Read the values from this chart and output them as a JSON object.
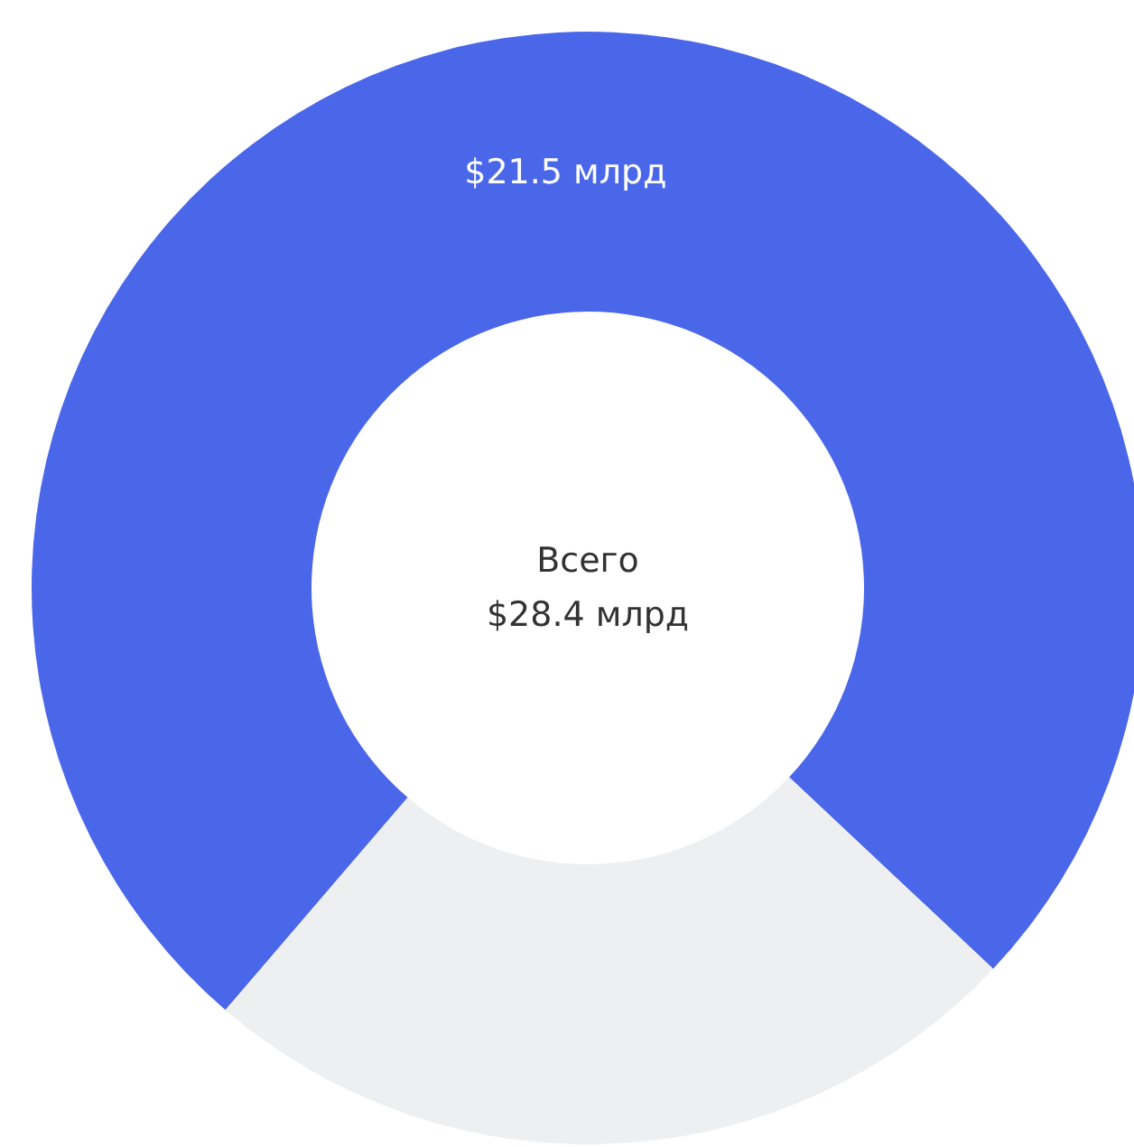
{
  "chart_data": {
    "type": "donut",
    "categories": [
      null,
      null
    ],
    "values": [
      21.5,
      6.9
    ],
    "colors": [
      "#4a67ea",
      "#eeeff1"
    ],
    "value_labels": [
      "$21.5 млрд",
      null
    ],
    "annotations": [
      "Всего",
      "$28.4 млрд"
    ]
  }
}
